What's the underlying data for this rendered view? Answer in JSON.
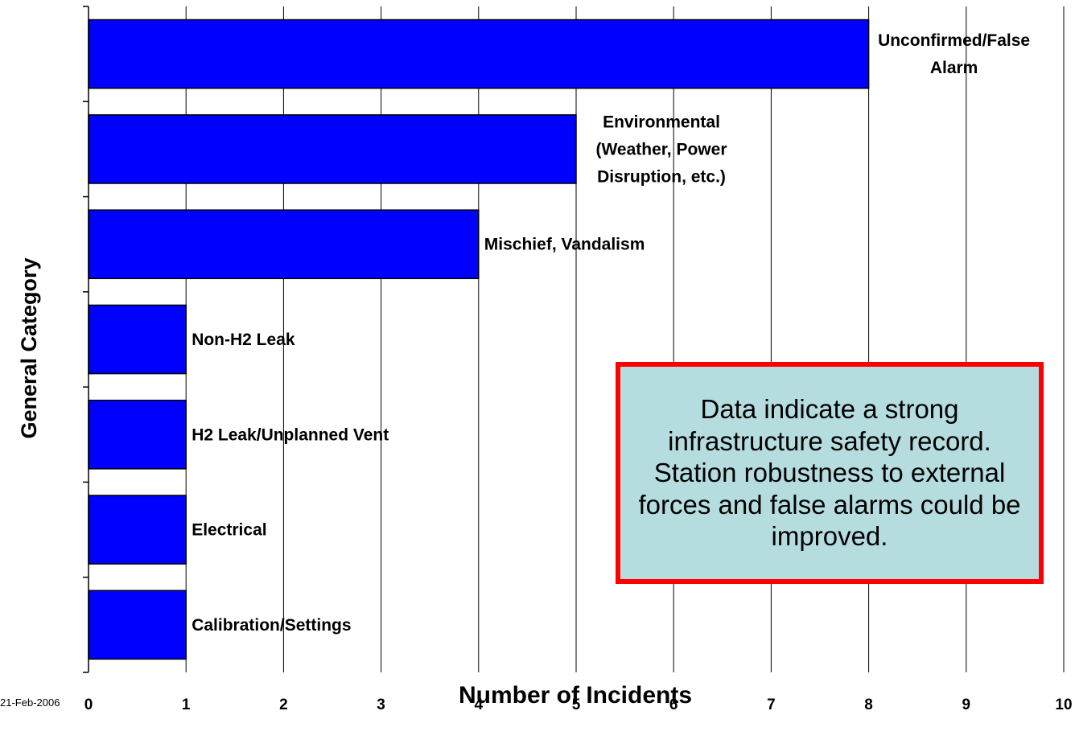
{
  "chart_data": {
    "type": "bar",
    "orientation": "horizontal",
    "categories": [
      "Unconfirmed/False Alarm",
      "Environmental (Weather, Power Disruption, etc.)",
      "Mischief, Vandalism",
      "Non-H2 Leak",
      "H2 Leak/Unplanned Vent",
      "Electrical",
      "Calibration/Settings"
    ],
    "label_lines": [
      [
        "Unconfirmed/False",
        "Alarm"
      ],
      [
        "Environmental",
        "(Weather, Power",
        "Disruption, etc.)"
      ],
      [
        "Mischief, Vandalism"
      ],
      [
        "Non-H2 Leak"
      ],
      [
        "H2 Leak/Unplanned Vent"
      ],
      [
        "Electrical"
      ],
      [
        "Calibration/Settings"
      ]
    ],
    "values": [
      8,
      5,
      4,
      1,
      1,
      1,
      1
    ],
    "xlabel": "Number of Incidents",
    "ylabel": "General Category",
    "xlim": [
      0,
      10
    ],
    "xticks": [
      "0",
      "1",
      "2",
      "3",
      "4",
      "5",
      "6",
      "7",
      "8",
      "9",
      "10"
    ],
    "grid": "vertical",
    "bar_color": "#0000ff",
    "bar_edge_color": "#000000"
  },
  "callout": {
    "text": "Data indicate a strong infrastructure safety record. Station robustness to external forces and false alarms could be improved.",
    "border_color": "#ff0000",
    "background_color": "#b5dde0"
  },
  "date_stamp": "21-Feb-2006"
}
